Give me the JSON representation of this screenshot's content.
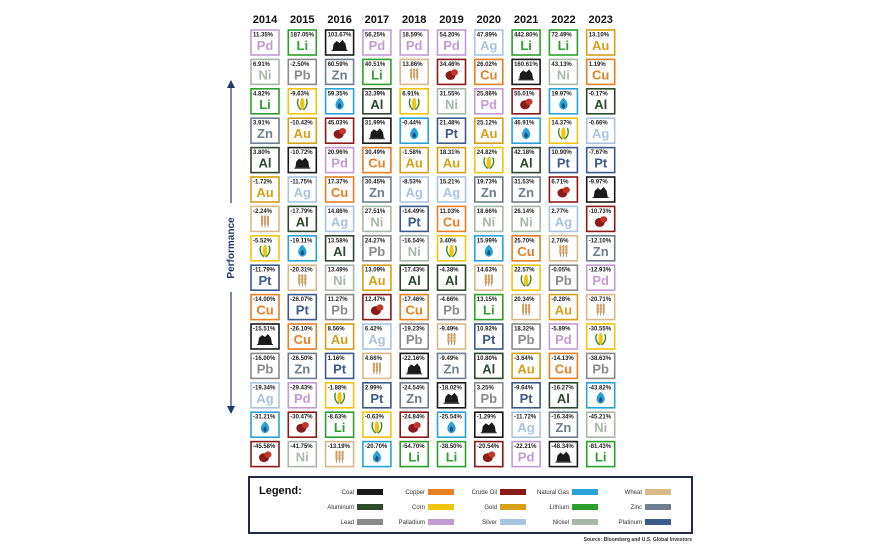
{
  "chart_data": {
    "type": "table",
    "ylabel": "Performance",
    "source": "Source: Bloomberg and U.S. Global Investors",
    "legend_title": "Legend:",
    "years": [
      "2014",
      "2015",
      "2016",
      "2017",
      "2018",
      "2019",
      "2020",
      "2021",
      "2022",
      "2023"
    ],
    "commodities": {
      "Coal": {
        "label": "Coal",
        "color": "#1a1a1a",
        "icon": "coal-icon"
      },
      "Aluminum": {
        "label": "Aluminum",
        "color": "#2d4a2d",
        "icon": "aluminum-symbol",
        "symbol": "Al"
      },
      "Lead": {
        "label": "Lead",
        "color": "#8a8a8a",
        "icon": "lead-symbol",
        "symbol": "Pb"
      },
      "Copper": {
        "label": "Copper",
        "color": "#e67e22",
        "icon": "copper-symbol",
        "symbol": "Cu"
      },
      "Corn": {
        "label": "Corn",
        "color": "#f1c40f",
        "icon": "corn-icon"
      },
      "Palladium": {
        "label": "Palladium",
        "color": "#c39bd3",
        "icon": "palladium-symbol",
        "symbol": "Pd"
      },
      "Crude Oil": {
        "label": "Crude Oil",
        "color": "#8b1a1a",
        "icon": "crude-oil-icon"
      },
      "Gold": {
        "label": "Gold",
        "color": "#d4a017",
        "icon": "gold-symbol",
        "symbol": "Au"
      },
      "Silver": {
        "label": "Silver",
        "color": "#a9c4e0",
        "icon": "silver-symbol",
        "symbol": "Ag"
      },
      "Natural Gas": {
        "label": "Natural Gas",
        "color": "#29a3d6",
        "icon": "natural-gas-icon"
      },
      "Lithium": {
        "label": "Lithium",
        "color": "#2e9e2e",
        "icon": "lithium-symbol",
        "symbol": "Li"
      },
      "Nickel": {
        "label": "Nickel",
        "color": "#a8b8a8",
        "icon": "nickel-symbol",
        "symbol": "Ni"
      },
      "Wheat": {
        "label": "Wheat",
        "color": "#d9b98a",
        "icon": "wheat-icon"
      },
      "Zinc": {
        "label": "Zinc",
        "color": "#6e7e8e",
        "icon": "zinc-symbol",
        "symbol": "Zn"
      },
      "Platinum": {
        "label": "Platinum",
        "color": "#3d5a8a",
        "icon": "platinum-symbol",
        "symbol": "Pt"
      }
    },
    "legend_order": [
      "Coal",
      "Aluminum",
      "Lead",
      "Copper",
      "Corn",
      "Palladium",
      "Crude Oil",
      "Gold",
      "Silver",
      "Natural Gas",
      "Lithium",
      "Nickel",
      "Wheat",
      "Zinc",
      "Platinum"
    ],
    "columns": [
      [
        [
          "Palladium",
          "11.35%"
        ],
        [
          "Nickel",
          "6.91%"
        ],
        [
          "Lithium",
          "4.82%"
        ],
        [
          "Zinc",
          "3.91%"
        ],
        [
          "Aluminum",
          "3.80%"
        ],
        [
          "Gold",
          "-1.72%"
        ],
        [
          "Wheat",
          "-2.24%"
        ],
        [
          "Corn",
          "-5.52%"
        ],
        [
          "Platinum",
          "-11.79%"
        ],
        [
          "Copper",
          "-14.00%"
        ],
        [
          "Coal",
          "-15.51%"
        ],
        [
          "Lead",
          "-16.00%"
        ],
        [
          "Silver",
          "-19.34%"
        ],
        [
          "Natural Gas",
          "-31.21%"
        ],
        [
          "Crude Oil",
          "-45.58%"
        ]
      ],
      [
        [
          "Lithium",
          "187.05%"
        ],
        [
          "Lead",
          "-2.50%"
        ],
        [
          "Corn",
          "-9.63%"
        ],
        [
          "Gold",
          "-10.42%"
        ],
        [
          "Coal",
          "-10.72%"
        ],
        [
          "Silver",
          "-11.75%"
        ],
        [
          "Aluminum",
          "-17.79%"
        ],
        [
          "Natural Gas",
          "-19.11%"
        ],
        [
          "Wheat",
          "-20.31%"
        ],
        [
          "Platinum",
          "-26.07%"
        ],
        [
          "Copper",
          "-26.10%"
        ],
        [
          "Zinc",
          "-26.50%"
        ],
        [
          "Palladium",
          "-29.43%"
        ],
        [
          "Crude Oil",
          "-30.47%"
        ],
        [
          "Nickel",
          "-41.75%"
        ]
      ],
      [
        [
          "Coal",
          "103.67%"
        ],
        [
          "Zinc",
          "60.59%"
        ],
        [
          "Natural Gas",
          "59.35%"
        ],
        [
          "Crude Oil",
          "45.03%"
        ],
        [
          "Palladium",
          "20.96%"
        ],
        [
          "Copper",
          "17.37%"
        ],
        [
          "Silver",
          "14.86%"
        ],
        [
          "Aluminum",
          "13.58%"
        ],
        [
          "Nickel",
          "13.49%"
        ],
        [
          "Lead",
          "11.27%"
        ],
        [
          "Gold",
          "8.56%"
        ],
        [
          "Platinum",
          "1.16%"
        ],
        [
          "Corn",
          "-1.88%"
        ],
        [
          "Lithium",
          "-8.63%"
        ],
        [
          "Wheat",
          "-13.19%"
        ]
      ],
      [
        [
          "Palladium",
          "56.25%"
        ],
        [
          "Lithium",
          "40.51%"
        ],
        [
          "Aluminum",
          "32.39%"
        ],
        [
          "Coal",
          "31.99%"
        ],
        [
          "Copper",
          "30.49%"
        ],
        [
          "Zinc",
          "30.45%"
        ],
        [
          "Nickel",
          "27.51%"
        ],
        [
          "Lead",
          "24.27%"
        ],
        [
          "Gold",
          "13.09%"
        ],
        [
          "Crude Oil",
          "12.47%"
        ],
        [
          "Silver",
          "6.42%"
        ],
        [
          "Wheat",
          "4.66%"
        ],
        [
          "Platinum",
          "2.99%"
        ],
        [
          "Corn",
          "-0.63%"
        ],
        [
          "Natural Gas",
          "-20.70%"
        ]
      ],
      [
        [
          "Palladium",
          "18.59%"
        ],
        [
          "Wheat",
          "13.86%"
        ],
        [
          "Corn",
          "6.91%"
        ],
        [
          "Natural Gas",
          "-0.44%"
        ],
        [
          "Gold",
          "-1.58%"
        ],
        [
          "Silver",
          "-8.53%"
        ],
        [
          "Platinum",
          "-14.49%"
        ],
        [
          "Nickel",
          "-16.54%"
        ],
        [
          "Aluminum",
          "-17.43%"
        ],
        [
          "Copper",
          "-17.46%"
        ],
        [
          "Lead",
          "-19.23%"
        ],
        [
          "Coal",
          "-22.16%"
        ],
        [
          "Zinc",
          "-24.54%"
        ],
        [
          "Crude Oil",
          "-24.84%"
        ],
        [
          "Lithium",
          "-54.70%"
        ]
      ],
      [
        [
          "Palladium",
          "54.20%"
        ],
        [
          "Crude Oil",
          "34.46%"
        ],
        [
          "Nickel",
          "31.55%"
        ],
        [
          "Platinum",
          "21.48%"
        ],
        [
          "Gold",
          "18.31%"
        ],
        [
          "Silver",
          "15.21%"
        ],
        [
          "Copper",
          "11.03%"
        ],
        [
          "Corn",
          "3.40%"
        ],
        [
          "Aluminum",
          "-4.38%"
        ],
        [
          "Lead",
          "-4.66%"
        ],
        [
          "Wheat",
          "-9.49%"
        ],
        [
          "Zinc",
          "-9.49%"
        ],
        [
          "Coal",
          "-18.02%"
        ],
        [
          "Natural Gas",
          "-25.54%"
        ],
        [
          "Lithium",
          "-38.50%"
        ]
      ],
      [
        [
          "Silver",
          "47.89%"
        ],
        [
          "Copper",
          "26.02%"
        ],
        [
          "Palladium",
          "25.86%"
        ],
        [
          "Gold",
          "25.12%"
        ],
        [
          "Corn",
          "24.82%"
        ],
        [
          "Zinc",
          "19.73%"
        ],
        [
          "Nickel",
          "18.66%"
        ],
        [
          "Natural Gas",
          "15.99%"
        ],
        [
          "Wheat",
          "14.63%"
        ],
        [
          "Lithium",
          "13.15%"
        ],
        [
          "Platinum",
          "10.92%"
        ],
        [
          "Aluminum",
          "10.80%"
        ],
        [
          "Lead",
          "3.25%"
        ],
        [
          "Coal",
          "-1.29%"
        ],
        [
          "Crude Oil",
          "-20.54%"
        ]
      ],
      [
        [
          "Lithium",
          "442.80%"
        ],
        [
          "Coal",
          "160.61%"
        ],
        [
          "Crude Oil",
          "55.01%"
        ],
        [
          "Natural Gas",
          "46.91%"
        ],
        [
          "Aluminum",
          "42.18%"
        ],
        [
          "Zinc",
          "31.53%"
        ],
        [
          "Nickel",
          "26.14%"
        ],
        [
          "Copper",
          "25.70%"
        ],
        [
          "Corn",
          "22.57%"
        ],
        [
          "Wheat",
          "20.34%"
        ],
        [
          "Lead",
          "18.32%"
        ],
        [
          "Gold",
          "-3.64%"
        ],
        [
          "Platinum",
          "-9.64%"
        ],
        [
          "Silver",
          "-11.72%"
        ],
        [
          "Palladium",
          "-22.21%"
        ]
      ],
      [
        [
          "Lithium",
          "72.49%"
        ],
        [
          "Nickel",
          "43.13%"
        ],
        [
          "Natural Gas",
          "19.97%"
        ],
        [
          "Corn",
          "14.37%"
        ],
        [
          "Platinum",
          "10.90%"
        ],
        [
          "Crude Oil",
          "6.71%"
        ],
        [
          "Silver",
          "2.77%"
        ],
        [
          "Wheat",
          "2.76%"
        ],
        [
          "Lead",
          "-0.05%"
        ],
        [
          "Gold",
          "-0.28%"
        ],
        [
          "Palladium",
          "-5.89%"
        ],
        [
          "Copper",
          "-14.13%"
        ],
        [
          "Aluminum",
          "-16.27%"
        ],
        [
          "Zinc",
          "-16.34%"
        ],
        [
          "Coal",
          "-48.34%"
        ]
      ],
      [
        [
          "Gold",
          "13.10%"
        ],
        [
          "Copper",
          "1.19%"
        ],
        [
          "Aluminum",
          "-0.17%"
        ],
        [
          "Silver",
          "-0.66%"
        ],
        [
          "Platinum",
          "-7.67%"
        ],
        [
          "Coal",
          "-9.97%"
        ],
        [
          "Crude Oil",
          "-10.73%"
        ],
        [
          "Zinc",
          "-12.10%"
        ],
        [
          "Palladium",
          "-12.93%"
        ],
        [
          "Wheat",
          "-20.71%"
        ],
        [
          "Corn",
          "-30.55%"
        ],
        [
          "Lead",
          "-38.63%"
        ],
        [
          "Natural Gas",
          "-43.82%"
        ],
        [
          "Nickel",
          "-45.21%"
        ],
        [
          "Lithium",
          "-81.43%"
        ]
      ]
    ]
  }
}
